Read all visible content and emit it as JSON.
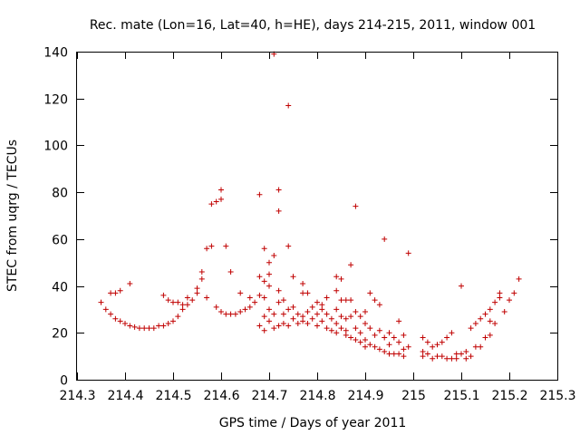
{
  "chart_data": {
    "type": "scatter",
    "title": "Rec. mate (Lon=16, Lat=40, h=HE), days 214-215, 2011, window 001",
    "xlabel": "GPS time / Days of year 2011",
    "ylabel": "STEC from uqrg / TECUs",
    "xlim": [
      214.3,
      215.3
    ],
    "ylim": [
      0,
      140
    ],
    "xticks": [
      "214.3",
      "214.4",
      "214.5",
      "214.6",
      "214.7",
      "214.8",
      "214.9",
      "215",
      "215.1",
      "215.2",
      "215.3"
    ],
    "yticks": [
      "0",
      "20",
      "40",
      "60",
      "80",
      "100",
      "120",
      "140"
    ],
    "grid": false,
    "legend": "none",
    "marker": "+",
    "color": "#c00000",
    "points": [
      [
        214.35,
        33
      ],
      [
        214.36,
        30
      ],
      [
        214.37,
        28
      ],
      [
        214.37,
        37
      ],
      [
        214.38,
        26
      ],
      [
        214.38,
        37
      ],
      [
        214.39,
        25
      ],
      [
        214.39,
        38
      ],
      [
        214.4,
        24
      ],
      [
        214.41,
        23
      ],
      [
        214.41,
        41
      ],
      [
        214.42,
        22.5
      ],
      [
        214.43,
        22
      ],
      [
        214.44,
        22
      ],
      [
        214.45,
        22
      ],
      [
        214.46,
        22
      ],
      [
        214.47,
        23
      ],
      [
        214.48,
        23
      ],
      [
        214.48,
        36
      ],
      [
        214.49,
        24
      ],
      [
        214.49,
        34
      ],
      [
        214.5,
        25
      ],
      [
        214.5,
        33
      ],
      [
        214.51,
        27
      ],
      [
        214.51,
        33
      ],
      [
        214.52,
        30
      ],
      [
        214.52,
        32
      ],
      [
        214.53,
        32
      ],
      [
        214.53,
        35
      ],
      [
        214.54,
        34
      ],
      [
        214.55,
        37
      ],
      [
        214.55,
        39
      ],
      [
        214.56,
        43
      ],
      [
        214.56,
        46
      ],
      [
        214.57,
        56
      ],
      [
        214.57,
        35
      ],
      [
        214.58,
        57
      ],
      [
        214.58,
        75
      ],
      [
        214.59,
        31
      ],
      [
        214.59,
        76
      ],
      [
        214.6,
        81
      ],
      [
        214.6,
        77
      ],
      [
        214.6,
        29
      ],
      [
        214.61,
        57
      ],
      [
        214.61,
        28
      ],
      [
        214.62,
        28
      ],
      [
        214.62,
        46
      ],
      [
        214.63,
        28
      ],
      [
        214.64,
        29
      ],
      [
        214.64,
        37
      ],
      [
        214.65,
        30
      ],
      [
        214.66,
        31
      ],
      [
        214.66,
        35
      ],
      [
        214.67,
        33
      ],
      [
        214.68,
        79
      ],
      [
        214.68,
        44
      ],
      [
        214.68,
        36
      ],
      [
        214.68,
        23
      ],
      [
        214.69,
        56
      ],
      [
        214.69,
        42
      ],
      [
        214.69,
        35
      ],
      [
        214.69,
        27
      ],
      [
        214.69,
        21
      ],
      [
        214.7,
        50
      ],
      [
        214.7,
        45
      ],
      [
        214.7,
        40
      ],
      [
        214.7,
        30
      ],
      [
        214.7,
        25
      ],
      [
        214.71,
        139
      ],
      [
        214.71,
        53
      ],
      [
        214.71,
        22
      ],
      [
        214.71,
        28
      ],
      [
        214.72,
        81
      ],
      [
        214.72,
        72
      ],
      [
        214.72,
        38
      ],
      [
        214.72,
        33
      ],
      [
        214.72,
        23
      ],
      [
        214.73,
        34
      ],
      [
        214.73,
        28
      ],
      [
        214.73,
        24
      ],
      [
        214.74,
        117
      ],
      [
        214.74,
        57
      ],
      [
        214.74,
        30
      ],
      [
        214.74,
        23
      ],
      [
        214.75,
        44
      ],
      [
        214.75,
        31
      ],
      [
        214.75,
        26
      ],
      [
        214.76,
        24
      ],
      [
        214.76,
        28
      ],
      [
        214.77,
        41
      ],
      [
        214.77,
        37
      ],
      [
        214.77,
        27
      ],
      [
        214.77,
        25
      ],
      [
        214.78,
        37
      ],
      [
        214.78,
        29
      ],
      [
        214.78,
        24
      ],
      [
        214.79,
        31
      ],
      [
        214.79,
        26
      ],
      [
        214.8,
        33
      ],
      [
        214.8,
        28
      ],
      [
        214.8,
        23
      ],
      [
        214.81,
        32
      ],
      [
        214.81,
        30
      ],
      [
        214.81,
        25
      ],
      [
        214.82,
        35
      ],
      [
        214.82,
        28
      ],
      [
        214.82,
        22
      ],
      [
        214.83,
        26
      ],
      [
        214.83,
        21
      ],
      [
        214.84,
        44
      ],
      [
        214.84,
        38
      ],
      [
        214.84,
        30
      ],
      [
        214.84,
        24
      ],
      [
        214.84,
        20
      ],
      [
        214.85,
        43
      ],
      [
        214.85,
        34
      ],
      [
        214.85,
        27
      ],
      [
        214.85,
        22
      ],
      [
        214.86,
        34
      ],
      [
        214.86,
        26
      ],
      [
        214.86,
        21
      ],
      [
        214.86,
        19
      ],
      [
        214.87,
        49
      ],
      [
        214.87,
        34
      ],
      [
        214.87,
        27
      ],
      [
        214.87,
        18
      ],
      [
        214.88,
        74
      ],
      [
        214.88,
        29
      ],
      [
        214.88,
        22
      ],
      [
        214.88,
        17
      ],
      [
        214.89,
        27
      ],
      [
        214.89,
        20
      ],
      [
        214.89,
        16
      ],
      [
        214.9,
        29
      ],
      [
        214.9,
        24
      ],
      [
        214.9,
        17
      ],
      [
        214.9,
        14
      ],
      [
        214.91,
        37
      ],
      [
        214.91,
        22
      ],
      [
        214.91,
        15
      ],
      [
        214.92,
        34
      ],
      [
        214.92,
        19
      ],
      [
        214.92,
        14
      ],
      [
        214.93,
        32
      ],
      [
        214.93,
        21
      ],
      [
        214.93,
        13
      ],
      [
        214.94,
        60
      ],
      [
        214.94,
        18
      ],
      [
        214.94,
        12
      ],
      [
        214.95,
        20
      ],
      [
        214.95,
        15
      ],
      [
        214.95,
        11
      ],
      [
        214.96,
        18
      ],
      [
        214.96,
        11
      ],
      [
        214.97,
        25
      ],
      [
        214.97,
        16
      ],
      [
        214.97,
        11
      ],
      [
        214.98,
        19
      ],
      [
        214.98,
        13
      ],
      [
        214.98,
        10
      ],
      [
        214.99,
        54
      ],
      [
        214.99,
        14
      ],
      [
        215.02,
        18
      ],
      [
        215.02,
        12
      ],
      [
        215.02,
        10
      ],
      [
        215.03,
        16
      ],
      [
        215.03,
        11
      ],
      [
        215.04,
        14
      ],
      [
        215.04,
        9
      ],
      [
        215.05,
        15
      ],
      [
        215.05,
        10
      ],
      [
        215.06,
        10
      ],
      [
        215.06,
        16
      ],
      [
        215.07,
        18
      ],
      [
        215.07,
        9
      ],
      [
        215.08,
        20
      ],
      [
        215.08,
        9
      ],
      [
        215.09,
        11
      ],
      [
        215.09,
        9
      ],
      [
        215.1,
        40
      ],
      [
        215.1,
        11
      ],
      [
        215.11,
        12
      ],
      [
        215.11,
        9
      ],
      [
        215.12,
        22
      ],
      [
        215.12,
        10
      ],
      [
        215.13,
        24
      ],
      [
        215.13,
        14
      ],
      [
        215.14,
        26
      ],
      [
        215.14,
        14
      ],
      [
        215.15,
        28
      ],
      [
        215.15,
        18
      ],
      [
        215.16,
        30
      ],
      [
        215.16,
        19
      ],
      [
        215.16,
        25
      ],
      [
        215.17,
        33
      ],
      [
        215.17,
        24
      ],
      [
        215.18,
        37
      ],
      [
        215.18,
        35
      ],
      [
        215.19,
        29
      ],
      [
        215.2,
        34
      ],
      [
        215.21,
        37
      ],
      [
        215.22,
        43
      ]
    ]
  }
}
